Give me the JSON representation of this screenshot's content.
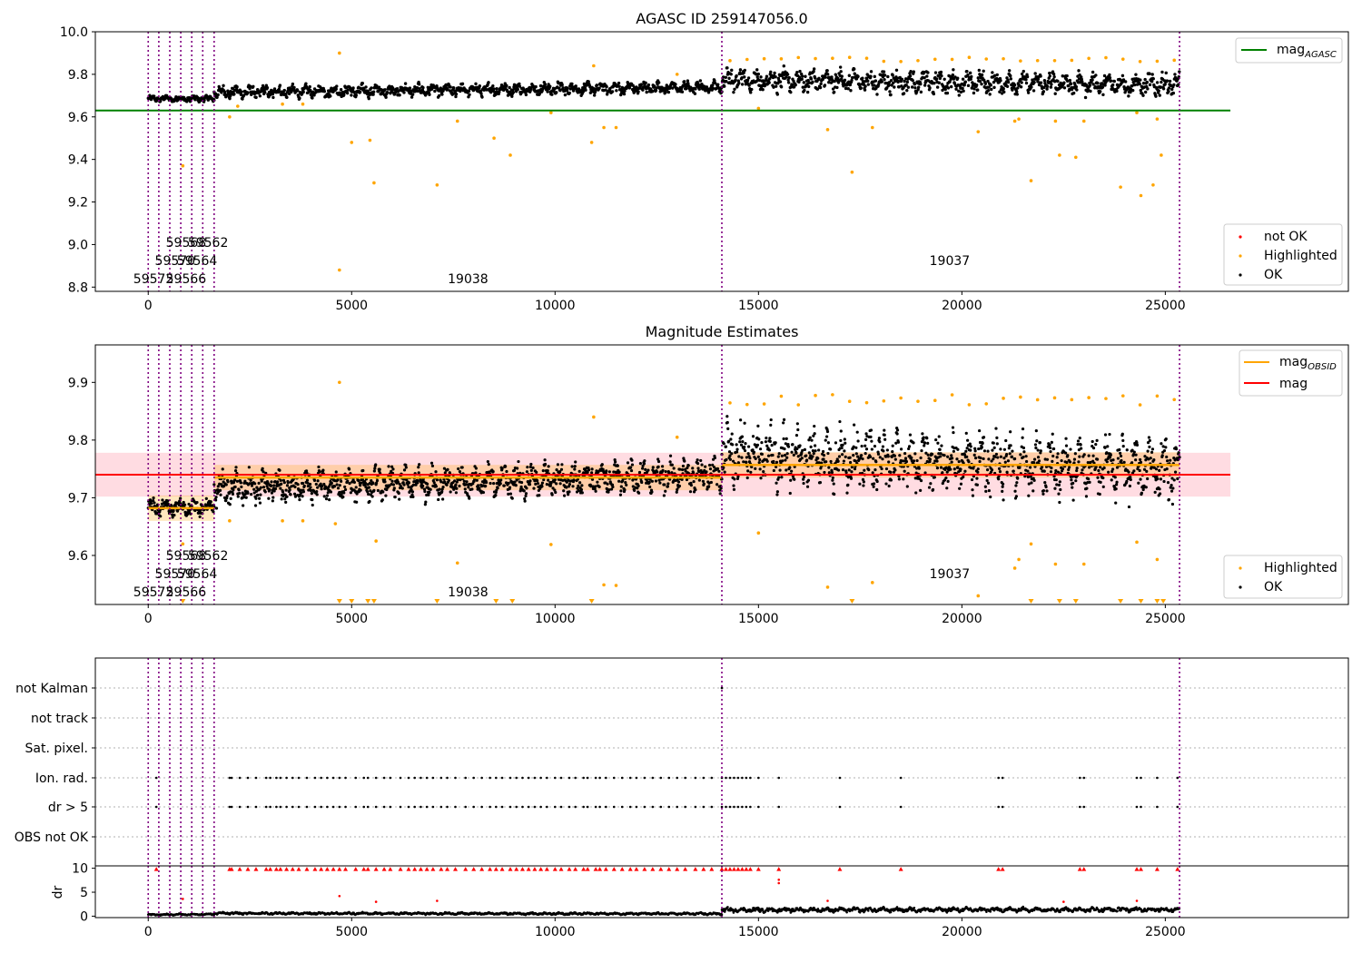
{
  "chart_data": [
    {
      "type": "scatter",
      "title": "AGASC ID 259147056.0",
      "xlabel": "",
      "ylabel": "",
      "xlim": [
        -1300,
        29500
      ],
      "ylim": [
        8.78,
        10.0
      ],
      "xticks": [
        0,
        5000,
        10000,
        15000,
        20000,
        25000
      ],
      "yticks": [
        8.8,
        9.0,
        9.2,
        9.4,
        9.6,
        9.8,
        10.0
      ],
      "ytick_labels": [
        "8.8",
        "9.0",
        "9.2",
        "9.4",
        "9.6",
        "9.8",
        "10.0"
      ],
      "mag_agasc": 9.63,
      "line_xmax": 26600,
      "colors": {
        "agasc_line": "#008000",
        "ok": "#000000",
        "highlighted": "#ffa500",
        "not_ok": "#ff0000",
        "obs_lines": "#800080"
      },
      "ok_segments": [
        {
          "x0": 0,
          "x1": 1620,
          "center_start": 9.685,
          "center_end": 9.685,
          "spread": 0.03
        },
        {
          "x0": 1620,
          "x1": 14100,
          "center_start": 9.715,
          "center_end": 9.74,
          "spread": 0.06
        },
        {
          "x0": 14100,
          "x1": 25350,
          "center_start": 9.775,
          "center_end": 9.75,
          "spread": 0.11
        }
      ],
      "highlighted_points": [
        [
          4700,
          9.9
        ],
        [
          4700,
          8.88
        ],
        [
          5000,
          9.48
        ],
        [
          5450,
          9.49
        ],
        [
          5550,
          9.29
        ],
        [
          7100,
          9.28
        ],
        [
          7600,
          9.58
        ],
        [
          8500,
          9.5
        ],
        [
          8900,
          9.42
        ],
        [
          9900,
          9.62
        ],
        [
          10900,
          9.48
        ],
        [
          10950,
          9.84
        ],
        [
          11200,
          9.55
        ],
        [
          11500,
          9.55
        ],
        [
          13000,
          9.8
        ],
        [
          15000,
          9.64
        ],
        [
          16700,
          9.54
        ],
        [
          17300,
          9.34
        ],
        [
          17800,
          9.55
        ],
        [
          20400,
          9.53
        ],
        [
          21300,
          9.58
        ],
        [
          21400,
          9.59
        ],
        [
          21700,
          9.3
        ],
        [
          22300,
          9.58
        ],
        [
          22400,
          9.42
        ],
        [
          22800,
          9.41
        ],
        [
          23000,
          9.58
        ],
        [
          23900,
          9.27
        ],
        [
          24300,
          9.62
        ],
        [
          24400,
          9.23
        ],
        [
          24700,
          9.28
        ],
        [
          24800,
          9.59
        ],
        [
          24900,
          9.42
        ],
        [
          850,
          9.37
        ],
        [
          2000,
          9.6
        ],
        [
          2200,
          9.65
        ],
        [
          3300,
          9.66
        ],
        [
          3800,
          9.66
        ]
      ],
      "obs_lines_x": [
        0,
        260,
        530,
        800,
        1070,
        1340,
        1620,
        14100,
        25350
      ],
      "obs_labels": [
        {
          "text": "59562",
          "x": 1470,
          "row": 0
        },
        {
          "text": "59568",
          "x": 930,
          "row": 0
        },
        {
          "text": "59564",
          "x": 1200,
          "row": 1
        },
        {
          "text": "59570",
          "x": 660,
          "row": 1
        },
        {
          "text": "59566",
          "x": 930,
          "row": 2
        },
        {
          "text": "59572",
          "x": 130,
          "row": 2
        },
        {
          "text": "19038",
          "x": 7860,
          "row": 2
        },
        {
          "text": "19037",
          "x": 19700,
          "row": 1
        }
      ],
      "legend_line": [
        {
          "label": "mag",
          "sub": "AGASC"
        }
      ],
      "legend_points": [
        {
          "label": "not OK",
          "color": "#ff0000"
        },
        {
          "label": "Highlighted",
          "color": "#ffa500"
        },
        {
          "label": "OK",
          "color": "#000000"
        }
      ]
    },
    {
      "type": "scatter",
      "title": "Magnitude Estimates",
      "xlabel": "",
      "ylabel": "",
      "xlim": [
        -1300,
        29500
      ],
      "ylim": [
        9.515,
        9.965
      ],
      "xticks": [
        0,
        5000,
        10000,
        15000,
        20000,
        25000
      ],
      "yticks": [
        9.6,
        9.7,
        9.8,
        9.9
      ],
      "ytick_labels": [
        "9.6",
        "9.7",
        "9.8",
        "9.9"
      ],
      "mag": 9.74,
      "mag_band": [
        9.702,
        9.778
      ],
      "band_xmax": 26600,
      "mag_obsid_steps": [
        {
          "x0": 0,
          "x1": 1620,
          "y": 9.682
        },
        {
          "x0": 1620,
          "x1": 14100,
          "y": 9.735
        },
        {
          "x0": 14100,
          "x1": 25350,
          "y": 9.757
        }
      ],
      "colors": {
        "mag_line": "#ff0000",
        "mag_obsid": "#ffa500",
        "band": "#ffc0cb",
        "ok": "#000000",
        "highlighted": "#ffa500"
      },
      "ok_segments": [
        {
          "x0": 0,
          "x1": 1620,
          "center_start": 9.683,
          "center_end": 9.683,
          "spread": 0.03
        },
        {
          "x0": 1620,
          "x1": 14100,
          "center_start": 9.715,
          "center_end": 9.74,
          "spread": 0.06
        },
        {
          "x0": 14100,
          "x1": 25350,
          "center_start": 9.775,
          "center_end": 9.75,
          "spread": 0.11
        }
      ],
      "highlighted_points": [
        [
          4700,
          9.9
        ],
        [
          5600,
          9.625
        ],
        [
          7600,
          9.587
        ],
        [
          9900,
          9.619
        ],
        [
          10950,
          9.84
        ],
        [
          11200,
          9.549
        ],
        [
          11500,
          9.548
        ],
        [
          13000,
          9.805
        ],
        [
          15000,
          9.639
        ],
        [
          16700,
          9.545
        ],
        [
          17800,
          9.553
        ],
        [
          20400,
          9.53
        ],
        [
          21300,
          9.578
        ],
        [
          21400,
          9.593
        ],
        [
          21700,
          9.62
        ],
        [
          22300,
          9.585
        ],
        [
          23000,
          9.585
        ],
        [
          24300,
          9.623
        ],
        [
          24800,
          9.593
        ],
        [
          850,
          9.62
        ],
        [
          2000,
          9.66
        ],
        [
          3300,
          9.66
        ],
        [
          3800,
          9.66
        ],
        [
          4600,
          9.655
        ]
      ],
      "clipped_markers_x": [
        4700,
        5000,
        5400,
        5550,
        7100,
        8550,
        8950,
        10900,
        17300,
        21700,
        22400,
        22800,
        23900,
        24400,
        24800,
        24950,
        850
      ],
      "obs_lines_x": [
        0,
        260,
        530,
        800,
        1070,
        1340,
        1620,
        14100,
        25350
      ],
      "obs_labels": [
        {
          "text": "59562",
          "x": 1470,
          "row": 0
        },
        {
          "text": "59568",
          "x": 930,
          "row": 0
        },
        {
          "text": "59564",
          "x": 1200,
          "row": 1
        },
        {
          "text": "59570",
          "x": 660,
          "row": 1
        },
        {
          "text": "59566",
          "x": 930,
          "row": 2
        },
        {
          "text": "59572",
          "x": 130,
          "row": 2
        },
        {
          "text": "19038",
          "x": 7860,
          "row": 2
        },
        {
          "text": "19037",
          "x": 19700,
          "row": 1
        }
      ],
      "legend_line": [
        {
          "label": "mag",
          "sub": "OBSID",
          "color": "#ffa500"
        },
        {
          "label": "mag",
          "sub": "",
          "color": "#ff0000"
        }
      ],
      "legend_points": [
        {
          "label": "Highlighted",
          "color": "#ffa500"
        },
        {
          "label": "OK",
          "color": "#000000"
        }
      ]
    },
    {
      "type": "scatter",
      "title": "",
      "xlabel": "",
      "ylabel": "",
      "xlim": [
        -1300,
        29500
      ],
      "flag_rows": [
        "not Kalman",
        "not track",
        "Sat. pixel.",
        "Ion. rad.",
        "dr > 5",
        "OBS not OK"
      ],
      "flag_hits": {
        "not Kalman": [
          14100
        ],
        "Ion. rad.": [
          200,
          2000,
          2050,
          2250,
          2450,
          2650,
          2900,
          3000,
          3150,
          3250,
          3400,
          3550,
          3700,
          3900,
          4100,
          4250,
          4400,
          4550,
          4700,
          4850,
          5100,
          5300,
          5400,
          5600,
          5800,
          5950,
          6200,
          6400,
          6550,
          6700,
          6850,
          7000,
          7200,
          7350,
          7550,
          7800,
          8000,
          8200,
          8400,
          8550,
          8700,
          8900,
          9050,
          9200,
          9350,
          9500,
          9650,
          9800,
          10000,
          10150,
          10350,
          10500,
          10700,
          10800,
          11000,
          11100,
          11250,
          11450,
          11650,
          11850,
          12000,
          12200,
          12400,
          12600,
          12800,
          13000,
          13200,
          13450,
          13650,
          13850,
          14100,
          14200,
          14300,
          14400,
          14500,
          14600,
          14700,
          14800,
          15000,
          15500,
          17000,
          18500,
          20900,
          21000,
          22900,
          23000,
          24300,
          24400,
          24800,
          25300
        ],
        "dr > 5": [
          200,
          2000,
          2050,
          2250,
          2450,
          2650,
          2900,
          3000,
          3150,
          3250,
          3400,
          3550,
          3700,
          3900,
          4100,
          4250,
          4400,
          4550,
          4700,
          4850,
          5100,
          5300,
          5400,
          5600,
          5800,
          5950,
          6200,
          6400,
          6550,
          6700,
          6850,
          7000,
          7200,
          7350,
          7550,
          7800,
          8000,
          8200,
          8400,
          8550,
          8700,
          8900,
          9050,
          9200,
          9350,
          9500,
          9650,
          9800,
          10000,
          10150,
          10350,
          10500,
          10700,
          10800,
          11000,
          11100,
          11250,
          11450,
          11650,
          11850,
          12000,
          12200,
          12400,
          12600,
          12800,
          13000,
          13200,
          13450,
          13650,
          13850,
          14100,
          14200,
          14300,
          14400,
          14500,
          14600,
          14700,
          14800,
          15000,
          15500,
          17000,
          18500,
          20900,
          21000,
          22900,
          23000,
          24300,
          24400,
          24800,
          25300
        ]
      },
      "colors": {
        "grid": "#b0b0b0",
        "obs_lines": "#800080"
      },
      "obs_lines_x": [
        0,
        260,
        530,
        800,
        1070,
        1340,
        1620,
        14100,
        25350
      ]
    },
    {
      "type": "scatter",
      "title": "",
      "xlabel": "",
      "ylabel": "dr",
      "xlim": [
        -1300,
        29500
      ],
      "ylim": [
        -0.3,
        10.5
      ],
      "xticks": [
        0,
        5000,
        10000,
        15000,
        20000,
        25000
      ],
      "yticks": [
        0,
        5,
        10
      ],
      "ytick_labels": [
        "0",
        "5",
        "10"
      ],
      "ok_segments": [
        {
          "x0": 0,
          "x1": 1620,
          "center_start": 0.3,
          "center_end": 0.4,
          "spread": 0.35
        },
        {
          "x0": 1620,
          "x1": 14100,
          "center_start": 0.6,
          "center_end": 0.5,
          "spread": 0.5
        },
        {
          "x0": 14100,
          "x1": 25350,
          "center_start": 1.3,
          "center_end": 1.4,
          "spread": 1.0
        }
      ],
      "clipped_x": [
        200,
        2000,
        2050,
        2250,
        2450,
        2650,
        2900,
        3000,
        3150,
        3250,
        3400,
        3550,
        3700,
        3900,
        4100,
        4250,
        4400,
        4550,
        4700,
        4850,
        5100,
        5300,
        5400,
        5600,
        5800,
        5950,
        6200,
        6400,
        6550,
        6700,
        6850,
        7000,
        7200,
        7350,
        7550,
        7800,
        8000,
        8200,
        8400,
        8550,
        8700,
        8900,
        9050,
        9200,
        9350,
        9500,
        9650,
        9800,
        10000,
        10150,
        10350,
        10500,
        10700,
        10800,
        11000,
        11100,
        11250,
        11450,
        11650,
        11850,
        12000,
        12200,
        12400,
        12600,
        12800,
        13000,
        13200,
        13450,
        13650,
        13850,
        14100,
        14200,
        14300,
        14400,
        14500,
        14600,
        14700,
        14800,
        15000,
        15500,
        17000,
        18500,
        20900,
        21000,
        22900,
        23000,
        24300,
        24400,
        24800,
        25300
      ],
      "red_points": [
        [
          4700,
          4.2
        ],
        [
          5600,
          3.0
        ],
        [
          7100,
          3.2
        ],
        [
          15500,
          7.6
        ],
        [
          15500,
          6.9
        ],
        [
          16700,
          3.2
        ],
        [
          22500,
          3.0
        ],
        [
          24300,
          3.2
        ],
        [
          850,
          3.6
        ]
      ],
      "colors": {
        "red": "#ff0000",
        "ok": "#000000",
        "obs_lines": "#800080"
      },
      "obs_lines_x": [
        0,
        260,
        530,
        800,
        1070,
        1340,
        1620,
        14100,
        25350
      ]
    }
  ]
}
